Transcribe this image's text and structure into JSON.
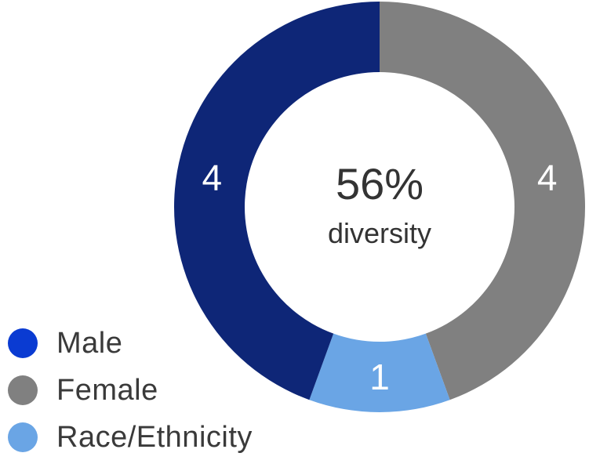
{
  "chart_data": {
    "type": "pie",
    "style": "donut",
    "center": {
      "value": "56%",
      "label": "diversity"
    },
    "slices": [
      {
        "name": "Female",
        "value": 4,
        "label": "4",
        "color": "#808080"
      },
      {
        "name": "Race/Ethnicity",
        "value": 1,
        "label": "1",
        "color": "#6aa5e5"
      },
      {
        "name": "Male",
        "value": 4,
        "label": "4",
        "color": "#0e2677"
      }
    ],
    "legend": {
      "placement": "bottom-left",
      "items": [
        {
          "label": "Male",
          "color": "#0a3bd2"
        },
        {
          "label": "Female",
          "color": "#808080"
        },
        {
          "label": "Race/Ethnicity",
          "color": "#6aa5e5"
        }
      ]
    }
  }
}
